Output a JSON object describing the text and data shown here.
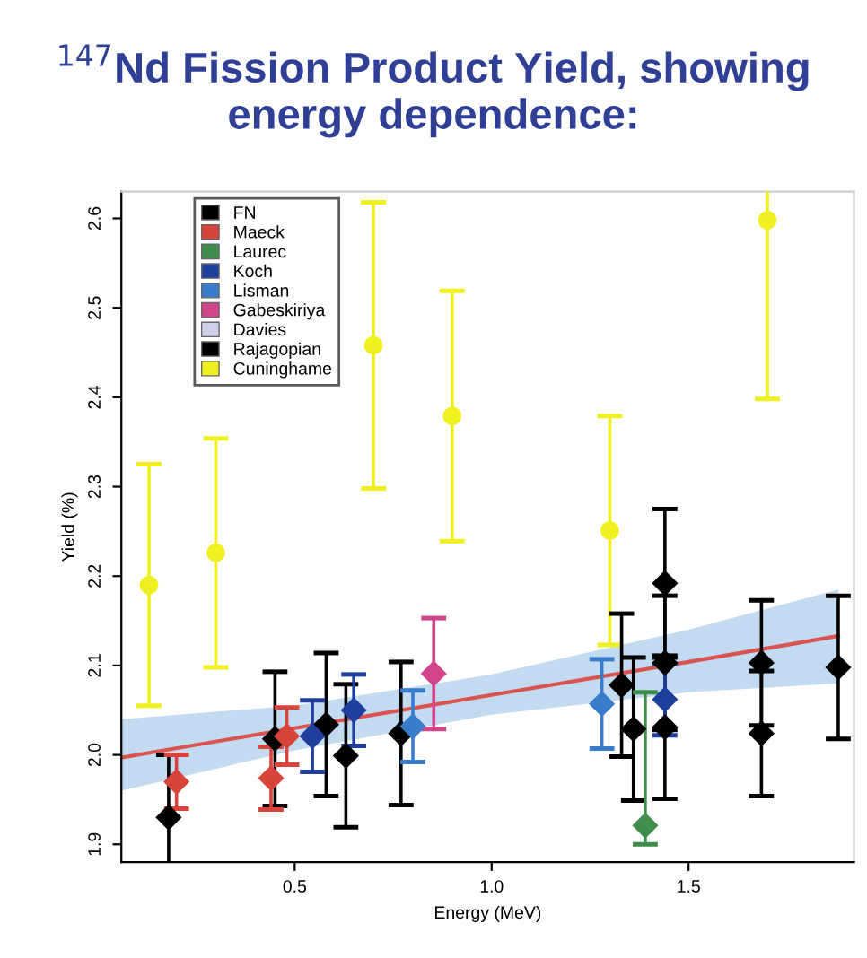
{
  "chart_data": {
    "type": "scatter",
    "title": "$^{147}$Nd Fission Product Yield, showing energy dependence:",
    "xlabel": "Energy (MeV)",
    "ylabel": "Yield (%)",
    "xlim": [
      0.06,
      1.92
    ],
    "ylim": [
      1.88,
      2.63
    ],
    "xticks": [
      0.5,
      {
        "value": 1.0,
        "label": "1.0"
      },
      1.5
    ],
    "yticks": [
      1.9,
      {
        "value": 2.0,
        "label": "2.0"
      },
      2.1,
      2.2,
      2.3,
      2.4,
      2.5,
      2.6
    ],
    "grid": false,
    "legend": "top left",
    "marker": "diamond",
    "series": [
      {
        "type": "line",
        "color": "#d9534f",
        "marker": "none",
        "x": [
          0.06,
          0.5,
          1.0,
          1.5,
          1.88
        ],
        "values": [
          1.997,
          2.03,
          2.067,
          2.104,
          2.133
        ],
        "lower": [
          1.96,
          2.005,
          2.045,
          2.07,
          2.08
        ],
        "upper": [
          2.04,
          2.055,
          2.09,
          2.14,
          2.185
        ]
      },
      {
        "name": "Cuninghame",
        "color": "#f0f020",
        "marker": "circle",
        "x": [
          0.13,
          0.3,
          0.7,
          0.9,
          1.3,
          1.7
        ],
        "values": [
          2.19,
          2.226,
          2.458,
          2.379,
          2.251,
          2.598
        ],
        "errors": [
          0.135,
          0.128,
          0.16,
          0.14,
          0.128,
          0.2
        ]
      },
      {
        "name": "FN",
        "color": "#000000",
        "x": [
          0.18,
          0.45,
          0.58,
          0.63,
          0.77,
          1.33,
          1.36,
          1.44,
          1.44,
          1.44,
          1.685,
          1.685,
          1.88
        ],
        "values": [
          1.93,
          2.018,
          2.034,
          1.999,
          2.024,
          2.078,
          2.029,
          2.192,
          2.103,
          2.031,
          2.103,
          2.024,
          2.098
        ],
        "errors": [
          0.07,
          0.075,
          0.08,
          0.08,
          0.08,
          0.08,
          0.08,
          0.083,
          0.075,
          0.08,
          0.07,
          0.07,
          0.08
        ]
      },
      {
        "name": "Maeck",
        "color": "#d9443a",
        "x": [
          0.2,
          0.44,
          0.48
        ],
        "values": [
          1.97,
          1.974,
          2.021
        ],
        "errors": [
          0.03,
          0.035,
          0.032
        ]
      },
      {
        "name": "Laurec",
        "color": "#3f8f4a",
        "x": [
          1.39
        ],
        "values": [
          1.921
        ],
        "errors": [
          [
            1.9,
            2.07
          ]
        ]
      },
      {
        "name": "Koch",
        "color": "#1f3f9f",
        "x": [
          0.545,
          0.65,
          1.44
        ],
        "values": [
          2.021,
          2.05,
          2.062
        ],
        "errors": [
          0.04,
          0.04,
          0.04
        ]
      },
      {
        "name": "Lisman",
        "color": "#3a7ccc",
        "x": [
          0.8,
          1.28
        ],
        "values": [
          2.032,
          2.057
        ],
        "errors": [
          0.04,
          0.05
        ]
      },
      {
        "name": "Gabeskiriya",
        "color": "#d4448c",
        "x": [
          0.853
        ],
        "values": [
          2.091
        ],
        "errors": [
          0.062
        ]
      },
      {
        "name": "Davies",
        "color": "#cfd0ec"
      },
      {
        "name": "Rajagopian",
        "color": "#000000"
      }
    ]
  }
}
